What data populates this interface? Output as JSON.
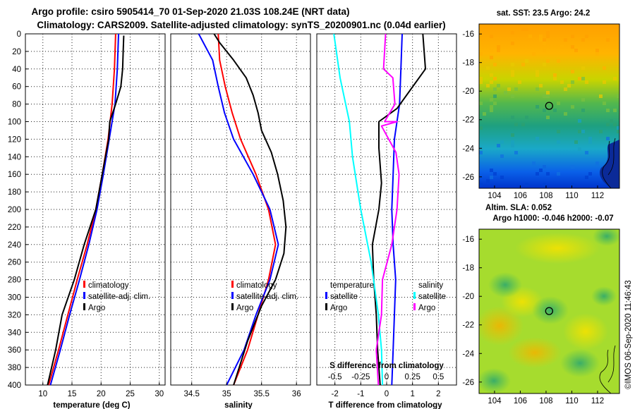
{
  "title_line1": "Argo profile: csiro 5905414_70 01-Sep-2020 21.03S 108.24E (NRT data)",
  "title_line2": "Climatology: CARS2009. Satellite-adjusted climatology: synTS_20200901.nc (0.04d earlier)",
  "colors": {
    "climatology": "#ff0000",
    "satellite": "#0000ff",
    "argo": "#000000",
    "sat_salinity": "#00ffff",
    "argo_salinity": "#ff00ff",
    "argo_marker": "#000000"
  },
  "chart_data": [
    {
      "type": "line",
      "id": "temperature",
      "xlabel": "temperature (deg C)",
      "xlim": [
        7,
        31
      ],
      "xticks": [
        10,
        15,
        20,
        25,
        30
      ],
      "ylim": [
        400,
        0
      ],
      "yticks": [
        0,
        20,
        40,
        60,
        80,
        100,
        120,
        140,
        160,
        180,
        200,
        220,
        240,
        260,
        280,
        300,
        320,
        340,
        360,
        380,
        400
      ],
      "legend": [
        "climatology",
        "satellite-adj. clim.",
        "Argo"
      ],
      "series": [
        {
          "name": "climatology",
          "points": [
            [
              22.5,
              0
            ],
            [
              22.3,
              40
            ],
            [
              21.9,
              80
            ],
            [
              21.2,
              120
            ],
            [
              20.2,
              160
            ],
            [
              19.1,
              200
            ],
            [
              17.6,
              240
            ],
            [
              15.9,
              280
            ],
            [
              14.3,
              320
            ],
            [
              12.7,
              360
            ],
            [
              11.0,
              400
            ]
          ]
        },
        {
          "name": "satellite-adj. clim.",
          "points": [
            [
              23.0,
              0
            ],
            [
              22.8,
              40
            ],
            [
              22.4,
              80
            ],
            [
              21.4,
              120
            ],
            [
              20.4,
              160
            ],
            [
              19.3,
              200
            ],
            [
              17.9,
              240
            ],
            [
              16.3,
              280
            ],
            [
              14.6,
              320
            ],
            [
              13.0,
              360
            ],
            [
              11.3,
              400
            ]
          ]
        },
        {
          "name": "Argo",
          "points": [
            [
              23.9,
              2
            ],
            [
              23.8,
              20
            ],
            [
              23.7,
              40
            ],
            [
              23.4,
              60
            ],
            [
              22.5,
              80
            ],
            [
              21.5,
              100
            ],
            [
              21.3,
              120
            ],
            [
              20.2,
              160
            ],
            [
              19.1,
              200
            ],
            [
              17.1,
              240
            ],
            [
              15.4,
              280
            ],
            [
              13.3,
              320
            ],
            [
              12.2,
              360
            ],
            [
              10.8,
              400
            ]
          ]
        }
      ]
    },
    {
      "type": "line",
      "id": "salinity",
      "xlabel": "salinity",
      "xlim": [
        34.2,
        36.2
      ],
      "xticks": [
        34.5,
        35,
        35.5,
        36
      ],
      "ylim": [
        400,
        0
      ],
      "legend": [
        "climatology",
        "satellite-adj. clim.",
        "Argo"
      ],
      "series": [
        {
          "name": "climatology",
          "points": [
            [
              34.88,
              0
            ],
            [
              34.9,
              30
            ],
            [
              34.98,
              60
            ],
            [
              35.08,
              90
            ],
            [
              35.2,
              120
            ],
            [
              35.42,
              160
            ],
            [
              35.6,
              200
            ],
            [
              35.7,
              240
            ],
            [
              35.6,
              280
            ],
            [
              35.45,
              320
            ],
            [
              35.3,
              360
            ],
            [
              35.1,
              400
            ]
          ]
        },
        {
          "name": "satellite-adj. clim.",
          "points": [
            [
              34.6,
              0
            ],
            [
              34.8,
              30
            ],
            [
              34.88,
              60
            ],
            [
              34.97,
              90
            ],
            [
              35.1,
              120
            ],
            [
              35.38,
              160
            ],
            [
              35.62,
              200
            ],
            [
              35.74,
              240
            ],
            [
              35.62,
              280
            ],
            [
              35.42,
              320
            ],
            [
              35.25,
              360
            ],
            [
              35.0,
              400
            ]
          ]
        },
        {
          "name": "Argo",
          "points": [
            [
              34.82,
              0
            ],
            [
              34.9,
              10
            ],
            [
              35.1,
              30
            ],
            [
              35.28,
              50
            ],
            [
              35.38,
              70
            ],
            [
              35.45,
              90
            ],
            [
              35.5,
              110
            ],
            [
              35.64,
              135
            ],
            [
              35.73,
              160
            ],
            [
              35.81,
              190
            ],
            [
              35.85,
              220
            ],
            [
              35.82,
              250
            ],
            [
              35.7,
              280
            ],
            [
              35.5,
              310
            ],
            [
              35.3,
              350
            ],
            [
              35.1,
              400
            ]
          ]
        }
      ]
    },
    {
      "type": "line",
      "id": "difference",
      "xlabel": "T difference from climatology",
      "xlabel_top": "S difference from climatology",
      "xlim": [
        -2.7,
        2.7
      ],
      "xticks": [
        -2,
        -1,
        0,
        1,
        2
      ],
      "xticks_top_values": [
        -0.5,
        -0.25,
        0,
        0.25,
        0.5
      ],
      "xticks_top": [
        "-0.5",
        "-0.25",
        "0",
        "0.25",
        "0.5"
      ],
      "ylim": [
        400,
        0
      ],
      "legend_left_title": "temperature",
      "legend_right_title": "salinity",
      "legend_left": [
        "satellite",
        "Argo"
      ],
      "legend_right": [
        "satellite",
        "Argo"
      ],
      "series": [
        {
          "name": "T satellite",
          "points": [
            [
              0.6,
              0
            ],
            [
              0.55,
              40
            ],
            [
              0.5,
              80
            ],
            [
              0.3,
              120
            ],
            [
              0.25,
              160
            ],
            [
              0.2,
              200
            ],
            [
              0.25,
              240
            ],
            [
              0.35,
              280
            ],
            [
              0.3,
              320
            ],
            [
              0.25,
              360
            ],
            [
              0.2,
              400
            ]
          ]
        },
        {
          "name": "T Argo",
          "points": [
            [
              1.4,
              0
            ],
            [
              1.5,
              40
            ],
            [
              0.4,
              85
            ],
            [
              -0.3,
              100
            ],
            [
              -0.3,
              130
            ],
            [
              -0.2,
              170
            ],
            [
              -0.3,
              200
            ],
            [
              -0.55,
              240
            ],
            [
              -0.5,
              280
            ],
            [
              -0.4,
              320
            ],
            [
              -0.35,
              360
            ],
            [
              -0.25,
              400
            ]
          ]
        },
        {
          "name": "S satellite",
          "points": [
            [
              -0.51,
              0
            ],
            [
              -0.45,
              50
            ],
            [
              -0.36,
              100
            ],
            [
              -0.33,
              140
            ],
            [
              -0.25,
              200
            ],
            [
              -0.15,
              260
            ],
            [
              -0.08,
              320
            ],
            [
              -0.05,
              360
            ],
            [
              -0.04,
              400
            ]
          ]
        },
        {
          "name": "S Argo",
          "points": [
            [
              -0.01,
              0
            ],
            [
              -0.03,
              40
            ],
            [
              0.06,
              50
            ],
            [
              0.08,
              80
            ],
            [
              -0.02,
              100
            ],
            [
              0.1,
              100
            ],
            [
              -0.05,
              105
            ],
            [
              0.09,
              135
            ],
            [
              0.12,
              160
            ],
            [
              0.1,
              200
            ],
            [
              0.05,
              240
            ],
            [
              -0.04,
              280
            ],
            [
              -0.05,
              320
            ],
            [
              -0.1,
              360
            ],
            [
              -0.08,
              400
            ]
          ]
        }
      ]
    },
    {
      "type": "heatmap",
      "id": "sst_map",
      "title": "sat. SST: 23.5 Argo: 24.2",
      "xticks": [
        104,
        106,
        108,
        110,
        112
      ],
      "yticks": [
        -16,
        -18,
        -20,
        -22,
        -24,
        -26
      ],
      "xlim": [
        102.8,
        113.7
      ],
      "ylim": [
        -26.8,
        -15.3
      ],
      "argo_position": [
        108.24,
        -21.03
      ]
    },
    {
      "type": "heatmap",
      "id": "sla_map",
      "title": "Altim. SLA: 0.052",
      "subtitle": "Argo h1000: -0.046 h2000: -0.07",
      "xticks": [
        104,
        106,
        108,
        110,
        112
      ],
      "yticks": [
        -16,
        -18,
        -20,
        -22,
        -24,
        -26
      ],
      "xlim": [
        102.8,
        113.7
      ],
      "ylim": [
        -26.8,
        -15.3
      ],
      "argo_position": [
        108.24,
        -21.03
      ]
    }
  ],
  "credit": "©IMOS 06-Sep-2020 11:46:43"
}
